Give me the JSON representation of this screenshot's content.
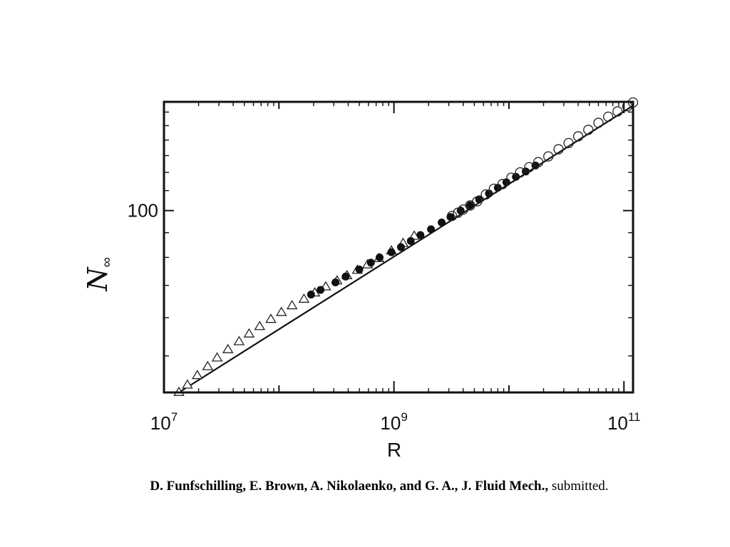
{
  "chart_data": {
    "type": "scatter",
    "xscale": "log",
    "yscale": "log",
    "xlim": [
      10000000.0,
      120000000000.0
    ],
    "ylim": [
      42,
      168
    ],
    "xlabel": "R",
    "ylabel": "N∞",
    "xticks_major": [
      {
        "value": 10000000.0,
        "base": "10",
        "exp": "7"
      },
      {
        "value": 1000000000.0,
        "base": "10",
        "exp": "9"
      },
      {
        "value": 100000000000.0,
        "base": "10",
        "exp": "11"
      }
    ],
    "yticks_labeled": [
      {
        "value": 100,
        "label": "100"
      }
    ],
    "grid": false,
    "legend": "none",
    "fit_line": {
      "x": [
        13500000.0,
        120000000000.0
      ],
      "y": [
        42,
        165
      ]
    },
    "series": [
      {
        "marker": "open-triangle",
        "points": [
          [
            13500000.0,
            42
          ],
          [
            16000000.0,
            43.5
          ],
          [
            19500000.0,
            45.5
          ],
          [
            24000000.0,
            47.5
          ],
          [
            29000000.0,
            49.5
          ],
          [
            36000000.0,
            51.5
          ],
          [
            45000000.0,
            53.5
          ],
          [
            55000000.0,
            55.5
          ],
          [
            68000000.0,
            57.5
          ],
          [
            85000000.0,
            59.5
          ],
          [
            105000000.0,
            61.5
          ],
          [
            130000000.0,
            63.5
          ],
          [
            165000000.0,
            65.5
          ],
          [
            205000000.0,
            67.5
          ],
          [
            255000000.0,
            69.5
          ],
          [
            320000000.0,
            71.5
          ],
          [
            390000000.0,
            73.3
          ],
          [
            480000000.0,
            75.2
          ],
          [
            590000000.0,
            77.2
          ],
          [
            740000000.0,
            79.5
          ],
          [
            950000000.0,
            82.5
          ],
          [
            1200000000.0,
            85.5
          ],
          [
            1500000000.0,
            88.5
          ]
        ]
      },
      {
        "marker": "filled-circle",
        "points": [
          [
            190000000.0,
            67
          ],
          [
            230000000.0,
            68.5
          ],
          [
            310000000.0,
            71
          ],
          [
            380000000.0,
            73
          ],
          [
            500000000.0,
            75.5
          ],
          [
            630000000.0,
            78
          ],
          [
            750000000.0,
            80
          ],
          [
            950000000.0,
            82
          ],
          [
            1150000000.0,
            84
          ],
          [
            1400000000.0,
            86.5
          ],
          [
            1700000000.0,
            89
          ],
          [
            2100000000.0,
            91.5
          ],
          [
            2600000000.0,
            94.5
          ],
          [
            3100000000.0,
            97
          ],
          [
            3800000000.0,
            100
          ],
          [
            4600000000.0,
            102.5
          ],
          [
            5500000000.0,
            105.5
          ],
          [
            6700000000.0,
            108.5
          ],
          [
            8000000000.0,
            111.5
          ],
          [
            9500000000.0,
            114.5
          ],
          [
            11500000000.0,
            117.5
          ],
          [
            14000000000.0,
            120.5
          ],
          [
            17000000000.0,
            124
          ]
        ]
      },
      {
        "marker": "open-circle",
        "points": [
          [
            3200000000.0,
            97.5
          ],
          [
            3600000000.0,
            99
          ],
          [
            4000000000.0,
            100.5
          ],
          [
            4600000000.0,
            102.5
          ],
          [
            5300000000.0,
            104.5
          ],
          [
            6300000000.0,
            108
          ],
          [
            7400000000.0,
            111
          ],
          [
            8800000000.0,
            113.5
          ],
          [
            10500000000.0,
            117
          ],
          [
            12500000000.0,
            120
          ],
          [
            15000000000.0,
            123
          ],
          [
            18000000000.0,
            126
          ],
          [
            22000000000.0,
            129.5
          ],
          [
            27000000000.0,
            134
          ],
          [
            33000000000.0,
            138
          ],
          [
            40000000000.0,
            142.5
          ],
          [
            49000000000.0,
            147
          ],
          [
            60000000000.0,
            152
          ],
          [
            73000000000.0,
            156.5
          ],
          [
            88000000000.0,
            160.5
          ],
          [
            107000000000.0,
            164.5
          ],
          [
            120000000000.0,
            167.5
          ]
        ]
      }
    ]
  },
  "citation": {
    "bold": "D. Funfschilling, E. Brown, A. Nikolaenko, and G. A., J. Fluid Mech.,",
    "normal": " submitted."
  }
}
